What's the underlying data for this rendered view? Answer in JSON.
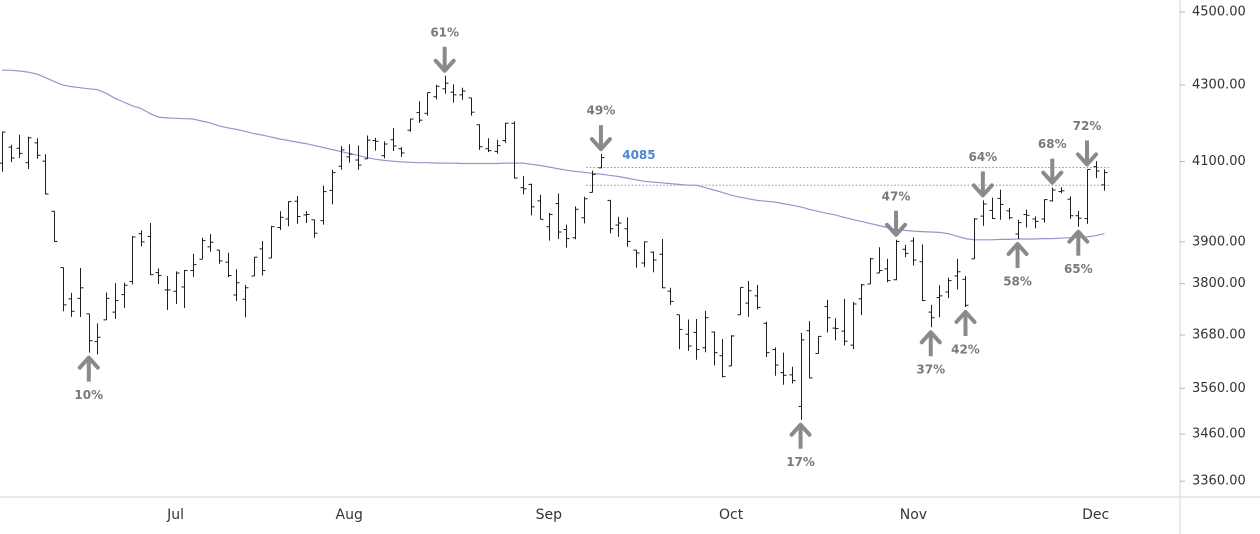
{
  "chart_data": {
    "type": "ohlc",
    "log_scale": true,
    "ylim": [
      3327,
      4534
    ],
    "yticks": [
      {
        "value": 4500,
        "label": "4500.00"
      },
      {
        "value": 4300,
        "label": "4300.00"
      },
      {
        "value": 4100,
        "label": "4100.00"
      },
      {
        "value": 3900,
        "label": "3900.00"
      },
      {
        "value": 3800,
        "label": "3800.00"
      },
      {
        "value": 3680,
        "label": "3680.00"
      },
      {
        "value": 3560,
        "label": "3560.00"
      },
      {
        "value": 3460,
        "label": "3460.00"
      },
      {
        "value": 3360,
        "label": "3360.00"
      }
    ],
    "categories": [
      null,
      null,
      null,
      null,
      null,
      null,
      null,
      null,
      null,
      null,
      null,
      null,
      null,
      null,
      null,
      null,
      null,
      null,
      null,
      null,
      "Jul",
      null,
      null,
      null,
      null,
      null,
      null,
      null,
      null,
      null,
      null,
      null,
      null,
      null,
      null,
      null,
      null,
      null,
      null,
      null,
      "Aug",
      null,
      null,
      null,
      null,
      null,
      null,
      null,
      null,
      null,
      null,
      null,
      null,
      null,
      null,
      null,
      null,
      null,
      null,
      null,
      null,
      null,
      null,
      "Sep",
      null,
      null,
      null,
      null,
      null,
      null,
      null,
      null,
      null,
      null,
      null,
      null,
      null,
      null,
      null,
      null,
      null,
      null,
      null,
      null,
      "Oct",
      null,
      null,
      null,
      null,
      null,
      null,
      null,
      null,
      null,
      null,
      null,
      null,
      null,
      null,
      null,
      null,
      null,
      null,
      null,
      null,
      "Nov",
      null,
      null,
      null,
      null,
      null,
      null,
      null,
      null,
      null,
      null,
      null,
      null,
      null,
      null,
      null,
      null,
      null,
      null,
      null,
      null,
      "Dec",
      null
    ],
    "color": "#1e1e1e",
    "open": [
      4096,
      4137,
      4134,
      4097,
      4148,
      4101,
      3975,
      3838,
      3764,
      3765,
      3729,
      3665,
      3715,
      3733,
      3774,
      3805,
      3920,
      3913,
      3826,
      3785,
      3782,
      3792,
      3831,
      3858,
      3888,
      3880,
      3851,
      3773,
      3763,
      3818,
      3883,
      3861,
      3935,
      3956,
      4000,
      3966,
      3954,
      3952,
      4027,
      4088,
      4112,
      4104,
      4107,
      4154,
      4115,
      4156,
      4133,
      4181,
      4227,
      4225,
      4269,
      4290,
      4281,
      4274,
      4266,
      4195,
      4133,
      4126,
      4154,
      4199,
      4034,
      4042,
      4001,
      3937,
      3994,
      3930,
      3910,
      3959,
      4022,
      4084,
      4002,
      3941,
      3932,
      3880,
      3849,
      3875,
      3870,
      3782,
      3727,
      3682,
      3686,
      3651,
      3687,
      3633,
      3610,
      3727,
      3754,
      3771,
      3707,
      3647,
      3595,
      3590,
      3520,
      3690,
      3638,
      3746,
      3696,
      3689,
      3657,
      3764,
      3799,
      3825,
      3835,
      3809,
      3882,
      3902,
      3852,
      3733,
      3767,
      3780,
      3818,
      3810,
      3859,
      3963,
      3977,
      4007,
      3976,
      3919,
      3967,
      3956,
      3956,
      4001,
      4024,
      4005,
      3964,
      3957,
      4087,
      4041
    ],
    "high": [
      4177,
      4143,
      4169,
      4164,
      4160,
      4119,
      3975,
      3838,
      3778,
      3837,
      3729,
      3707,
      3779,
      3801,
      3802,
      3914,
      3928,
      3946,
      3836,
      3818,
      3829,
      3832,
      3871,
      3910,
      3919,
      3880,
      3874,
      3834,
      3797,
      3863,
      3902,
      3939,
      3975,
      4000,
      4013,
      3975,
      3954,
      4039,
      4079,
      4140,
      4144,
      4141,
      4167,
      4161,
      4152,
      4187,
      4137,
      4211,
      4257,
      4280,
      4301,
      4325,
      4302,
      4293,
      4266,
      4196,
      4160,
      4156,
      4200,
      4204,
      4063,
      4044,
      4016,
      3971,
      4019,
      3942,
      3987,
      4011,
      4077,
      4119,
      4002,
      3961,
      3960,
      3880,
      3901,
      3877,
      3907,
      3790,
      3727,
      3716,
      3717,
      3736,
      3688,
      3671,
      3680,
      3791,
      3806,
      3797,
      3711,
      3652,
      3640,
      3608,
      3685,
      3712,
      3677,
      3762,
      3719,
      3764,
      3757,
      3799,
      3862,
      3887,
      3859,
      3905,
      3893,
      3911,
      3894,
      3750,
      3796,
      3814,
      3859,
      3818,
      3958,
      4002,
      4009,
      4029,
      3983,
      3954,
      3979,
      3962,
      4005,
      4034,
      4035,
      4012,
      3976,
      4080,
      4101,
      4080
    ],
    "low": [
      4074,
      4099,
      4109,
      4081,
      4107,
      4017,
      3900,
      3735,
      3722,
      3722,
      3640,
      3636,
      3715,
      3717,
      3743,
      3798,
      3889,
      3820,
      3799,
      3738,
      3752,
      3743,
      3816,
      3858,
      3876,
      3847,
      3815,
      3759,
      3721,
      3818,
      3819,
      3861,
      3929,
      3938,
      3944,
      3946,
      3910,
      3942,
      3992,
      4079,
      4097,
      4079,
      4107,
      4128,
      4108,
      4127,
      4112,
      4177,
      4200,
      4219,
      4262,
      4277,
      4253,
      4261,
      4219,
      4130,
      4124,
      4120,
      4148,
      4057,
      4017,
      3965,
      3955,
      3903,
      3907,
      3886,
      3906,
      3945,
      4022,
      4083,
      3921,
      3912,
      3888,
      3838,
      3839,
      3827,
      3789,
      3750,
      3648,
      3644,
      3624,
      3641,
      3611,
      3585,
      3610,
      3727,
      3722,
      3739,
      3630,
      3588,
      3568,
      3571,
      3491,
      3582,
      3638,
      3686,
      3668,
      3656,
      3648,
      3726,
      3799,
      3825,
      3803,
      3808,
      3863,
      3843,
      3759,
      3698,
      3721,
      3766,
      3786,
      3745,
      3859,
      3939,
      3956,
      3954,
      3955,
      3907,
      3935,
      3933,
      3947,
      3999,
      4020,
      3956,
      3937,
      3944,
      4058,
      4026
    ],
    "close": [
      4176,
      4109,
      4121,
      4161,
      4116,
      4018,
      3901,
      3750,
      3735,
      3790,
      3667,
      3675,
      3765,
      3760,
      3796,
      3912,
      3900,
      3821,
      3819,
      3785,
      3825,
      3831,
      3845,
      3903,
      3899,
      3854,
      3819,
      3802,
      3790,
      3863,
      3831,
      3937,
      3960,
      3999,
      3962,
      3967,
      3921,
      4024,
      4072,
      4130,
      4119,
      4091,
      4155,
      4152,
      4145,
      4140,
      4122,
      4210,
      4207,
      4280,
      4297,
      4305,
      4274,
      4284,
      4228,
      4138,
      4128,
      4141,
      4199,
      4058,
      4031,
      3986,
      3955,
      3967,
      3924,
      3908,
      3980,
      4006,
      4067,
      4110,
      3932,
      3946,
      3901,
      3873,
      3900,
      3856,
      3790,
      3758,
      3693,
      3655,
      3647,
      3720,
      3640,
      3586,
      3678,
      3791,
      3783,
      3744,
      3640,
      3612,
      3589,
      3577,
      3669,
      3583,
      3677,
      3720,
      3695,
      3666,
      3752,
      3797,
      3859,
      3831,
      3807,
      3901,
      3872,
      3856,
      3760,
      3720,
      3771,
      3807,
      3828,
      3749,
      3956,
      3993,
      3957,
      3992,
      3959,
      3947,
      3965,
      3950,
      4004,
      4028,
      4026,
      3964,
      3958,
      4080,
      4076,
      4072
    ],
    "moving_average": {
      "color": "#9b93cf",
      "values": [
        4340,
        4340,
        4338,
        4335,
        4330,
        4320,
        4310,
        4300,
        4296,
        4293,
        4290,
        4288,
        4278,
        4265,
        4255,
        4245,
        4238,
        4225,
        4215,
        4213,
        4212,
        4211,
        4210,
        4205,
        4200,
        4192,
        4187,
        4183,
        4178,
        4172,
        4168,
        4163,
        4158,
        4154,
        4150,
        4146,
        4141,
        4136,
        4131,
        4126,
        4121,
        4116,
        4110,
        4106,
        4103,
        4101,
        4099,
        4098,
        4097,
        4097,
        4096,
        4096,
        4096,
        4095,
        4095,
        4095,
        4095,
        4095,
        4096,
        4096,
        4096,
        4093,
        4090,
        4086,
        4082,
        4078,
        4075,
        4073,
        4070,
        4068,
        4065,
        4062,
        4058,
        4054,
        4050,
        4048,
        4046,
        4044,
        4042,
        4040,
        4040,
        4034,
        4028,
        4022,
        4015,
        4010,
        4006,
        4002,
        4000,
        3998,
        3994,
        3990,
        3986,
        3980,
        3975,
        3970,
        3966,
        3960,
        3955,
        3950,
        3945,
        3940,
        3935,
        3930,
        3928,
        3926,
        3925,
        3924,
        3923,
        3920,
        3914,
        3908,
        3905,
        3905,
        3905,
        3906,
        3906,
        3907,
        3907,
        3907,
        3908,
        3908,
        3909,
        3910,
        3910,
        3912,
        3915,
        3920
      ]
    },
    "reference_lines": [
      {
        "value": 4085,
        "label": "4085",
        "color": "#6aa6a6",
        "label_color": "#4a86d6",
        "from_bar": 68
      },
      {
        "value": 4040,
        "color": "#6aa6a6",
        "from_bar": 68
      }
    ],
    "annotations": [
      {
        "text": "10%",
        "bar": 10,
        "side": "below"
      },
      {
        "text": "61%",
        "bar": 51,
        "side": "above"
      },
      {
        "text": "49%",
        "bar": 69,
        "side": "above"
      },
      {
        "text": "17%",
        "bar": 92,
        "side": "below"
      },
      {
        "text": "47%",
        "bar": 103,
        "side": "above"
      },
      {
        "text": "37%",
        "bar": 107,
        "side": "below"
      },
      {
        "text": "42%",
        "bar": 111,
        "side": "below"
      },
      {
        "text": "64%",
        "bar": 113,
        "side": "above"
      },
      {
        "text": "58%",
        "bar": 117,
        "side": "below"
      },
      {
        "text": "68%",
        "bar": 121,
        "side": "above"
      },
      {
        "text": "65%",
        "bar": 124,
        "side": "below"
      },
      {
        "text": "72%",
        "bar": 125,
        "side": "above"
      }
    ]
  }
}
